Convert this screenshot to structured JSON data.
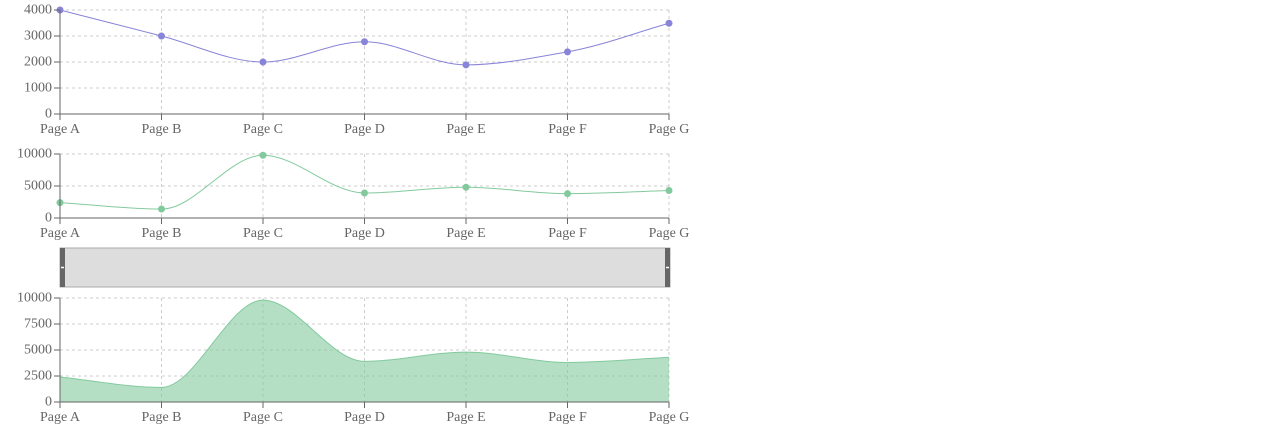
{
  "chart_data": [
    {
      "type": "line",
      "categories": [
        "Page A",
        "Page B",
        "Page C",
        "Page D",
        "Page E",
        "Page F",
        "Page G"
      ],
      "series": [
        {
          "values": [
            4000,
            3000,
            2000,
            2780,
            1890,
            2390,
            3490
          ],
          "color": "#8884d8"
        }
      ],
      "yticks": [
        "0",
        "1000",
        "2000",
        "3000",
        "4000"
      ],
      "ylim": [
        0,
        4000
      ],
      "grid": true,
      "curve": "monotone"
    },
    {
      "type": "line",
      "categories": [
        "Page A",
        "Page B",
        "Page C",
        "Page D",
        "Page E",
        "Page F",
        "Page G"
      ],
      "series": [
        {
          "values": [
            2400,
            1398,
            9800,
            3908,
            4800,
            3800,
            4300
          ],
          "color": "#82ca9d"
        }
      ],
      "yticks": [
        "0",
        "5000",
        "10000"
      ],
      "ylim": [
        0,
        10000
      ],
      "grid": true,
      "curve": "monotone"
    },
    {
      "type": "area",
      "categories": [
        "Page A",
        "Page B",
        "Page C",
        "Page D",
        "Page E",
        "Page F",
        "Page G"
      ],
      "series": [
        {
          "values": [
            2400,
            1398,
            9800,
            3908,
            4800,
            3800,
            4300
          ],
          "color": "#82ca9d"
        }
      ],
      "yticks": [
        "0",
        "2500",
        "5000",
        "7500",
        "10000"
      ],
      "ylim": [
        0,
        10000
      ],
      "grid": true,
      "curve": "monotone"
    }
  ],
  "brush": {
    "range_start": 0,
    "range_end": 1,
    "fill": "#dddddd",
    "handle_color": "#666666"
  }
}
